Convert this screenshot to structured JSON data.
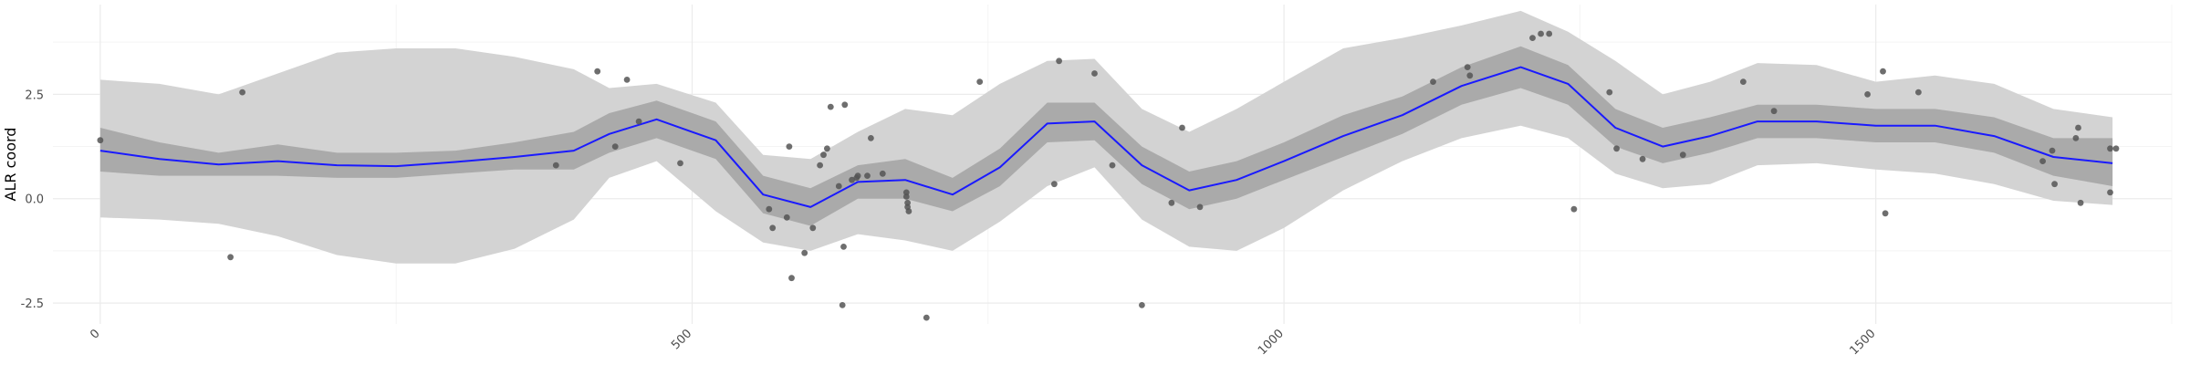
{
  "chart_data": {
    "type": "line",
    "title": "",
    "xlabel": "",
    "ylabel": "ALR coord",
    "xlim": [
      -40,
      1750
    ],
    "ylim": [
      -3.0,
      4.65
    ],
    "x_ticks": [
      {
        "value": 0,
        "label": "0"
      },
      {
        "value": 500,
        "label": "500"
      },
      {
        "value": 1000,
        "label": "1000"
      },
      {
        "value": 1500,
        "label": "1500"
      }
    ],
    "y_ticks": [
      {
        "value": -2.5,
        "label": "-2.5"
      },
      {
        "value": 0,
        "label": "0.0"
      },
      {
        "value": 2.5,
        "label": "2.5"
      }
    ],
    "grid": true,
    "colors": {
      "line": "#1a1aff",
      "band_inner": "#aaaaaa",
      "band_outer": "#d3d3d3",
      "points": "#555555",
      "grid_major": "#ebebeb",
      "grid_minor": "#f4f4f4"
    },
    "series": [
      {
        "type": "line",
        "x": [
          0,
          50,
          100,
          150,
          200,
          250,
          300,
          350,
          400,
          430,
          470,
          520,
          560,
          600,
          640,
          680,
          720,
          760,
          800,
          840,
          880,
          920,
          960,
          1000,
          1050,
          1100,
          1150,
          1200,
          1240,
          1280,
          1320,
          1360,
          1400,
          1450,
          1500,
          1550,
          1600,
          1650,
          1700
        ],
        "y": [
          1.15,
          0.95,
          0.82,
          0.9,
          0.8,
          0.78,
          0.88,
          1.0,
          1.15,
          1.55,
          1.9,
          1.4,
          0.1,
          -0.2,
          0.4,
          0.45,
          0.1,
          0.75,
          1.8,
          1.85,
          0.8,
          0.2,
          0.45,
          0.9,
          1.5,
          2.0,
          2.7,
          3.15,
          2.75,
          1.7,
          1.25,
          1.5,
          1.85,
          1.85,
          1.75,
          1.75,
          1.5,
          1.0,
          0.85
        ]
      },
      {
        "type": "band",
        "x": [
          0,
          50,
          100,
          150,
          200,
          250,
          300,
          350,
          400,
          430,
          470,
          520,
          560,
          600,
          640,
          680,
          720,
          760,
          800,
          840,
          880,
          920,
          960,
          1000,
          1050,
          1100,
          1150,
          1200,
          1240,
          1280,
          1320,
          1360,
          1400,
          1450,
          1500,
          1550,
          1600,
          1650,
          1700
        ],
        "lower": [
          0.65,
          0.55,
          0.55,
          0.55,
          0.5,
          0.5,
          0.6,
          0.7,
          0.7,
          1.1,
          1.45,
          0.95,
          -0.35,
          -0.65,
          0.0,
          0.0,
          -0.3,
          0.3,
          1.35,
          1.4,
          0.35,
          -0.25,
          0.0,
          0.45,
          1.0,
          1.55,
          2.25,
          2.65,
          2.25,
          1.25,
          0.85,
          1.1,
          1.45,
          1.45,
          1.35,
          1.35,
          1.1,
          0.55,
          0.3
        ],
        "upper": [
          1.7,
          1.35,
          1.1,
          1.3,
          1.1,
          1.1,
          1.15,
          1.35,
          1.6,
          2.05,
          2.35,
          1.85,
          0.55,
          0.25,
          0.8,
          0.95,
          0.5,
          1.2,
          2.3,
          2.3,
          1.25,
          0.65,
          0.9,
          1.35,
          2.0,
          2.45,
          3.15,
          3.65,
          3.2,
          2.15,
          1.7,
          1.95,
          2.25,
          2.25,
          2.15,
          2.15,
          1.95,
          1.45,
          1.45
        ]
      },
      {
        "type": "band",
        "x": [
          0,
          50,
          100,
          150,
          200,
          250,
          300,
          350,
          400,
          430,
          470,
          520,
          560,
          600,
          640,
          680,
          720,
          760,
          800,
          840,
          880,
          920,
          960,
          1000,
          1050,
          1100,
          1150,
          1200,
          1240,
          1280,
          1320,
          1360,
          1400,
          1450,
          1500,
          1550,
          1600,
          1650,
          1700
        ],
        "lower": [
          -0.45,
          -0.5,
          -0.6,
          -0.9,
          -1.35,
          -1.55,
          -1.55,
          -1.2,
          -0.5,
          0.5,
          0.9,
          -0.3,
          -1.05,
          -1.25,
          -0.85,
          -1.0,
          -1.25,
          -0.55,
          0.3,
          0.75,
          -0.5,
          -1.15,
          -1.25,
          -0.7,
          0.2,
          0.9,
          1.45,
          1.75,
          1.45,
          0.6,
          0.25,
          0.35,
          0.8,
          0.85,
          0.7,
          0.6,
          0.35,
          -0.05,
          -0.15
        ],
        "upper": [
          2.85,
          2.75,
          2.5,
          3.0,
          3.5,
          3.6,
          3.6,
          3.4,
          3.1,
          2.65,
          2.75,
          2.3,
          1.05,
          0.95,
          1.6,
          2.15,
          2.0,
          2.75,
          3.3,
          3.35,
          2.15,
          1.6,
          2.15,
          2.8,
          3.6,
          3.85,
          4.15,
          4.5,
          4.0,
          3.3,
          2.5,
          2.8,
          3.25,
          3.2,
          2.8,
          2.95,
          2.75,
          2.15,
          1.95
        ]
      },
      {
        "type": "scatter",
        "points": [
          [
            0,
            1.4
          ],
          [
            110,
            -1.4
          ],
          [
            120,
            2.55
          ],
          [
            385,
            0.8
          ],
          [
            420,
            3.05
          ],
          [
            435,
            1.25
          ],
          [
            445,
            2.85
          ],
          [
            455,
            1.85
          ],
          [
            490,
            0.85
          ],
          [
            565,
            -0.25
          ],
          [
            568,
            -0.7
          ],
          [
            580,
            -0.45
          ],
          [
            582,
            1.25
          ],
          [
            584,
            -1.9
          ],
          [
            595,
            -1.3
          ],
          [
            602,
            -0.7
          ],
          [
            608,
            0.8
          ],
          [
            611,
            1.05
          ],
          [
            614,
            1.2
          ],
          [
            617,
            2.2
          ],
          [
            624,
            0.3
          ],
          [
            627,
            -2.55
          ],
          [
            628,
            -1.15
          ],
          [
            629,
            2.25
          ],
          [
            635,
            0.45
          ],
          [
            639,
            0.5
          ],
          [
            640,
            0.55
          ],
          [
            648,
            0.55
          ],
          [
            651,
            1.45
          ],
          [
            661,
            0.6
          ],
          [
            681,
            0.15
          ],
          [
            681,
            0.05
          ],
          [
            682,
            -0.1
          ],
          [
            682,
            -0.2
          ],
          [
            683,
            -0.3
          ],
          [
            698,
            -2.85
          ],
          [
            743,
            2.8
          ],
          [
            806,
            0.35
          ],
          [
            810,
            3.3
          ],
          [
            840,
            3.0
          ],
          [
            855,
            0.8
          ],
          [
            880,
            -2.55
          ],
          [
            905,
            -0.1
          ],
          [
            914,
            1.7
          ],
          [
            929,
            -0.2
          ],
          [
            1126,
            2.8
          ],
          [
            1155,
            3.15
          ],
          [
            1157,
            2.95
          ],
          [
            1210,
            3.85
          ],
          [
            1217,
            3.95
          ],
          [
            1224,
            3.95
          ],
          [
            1245,
            -0.25
          ],
          [
            1275,
            2.55
          ],
          [
            1281,
            1.2
          ],
          [
            1303,
            0.95
          ],
          [
            1337,
            1.05
          ],
          [
            1388,
            2.8
          ],
          [
            1414,
            2.1
          ],
          [
            1493,
            2.5
          ],
          [
            1506,
            3.05
          ],
          [
            1508,
            -0.35
          ],
          [
            1536,
            2.55
          ],
          [
            1641,
            0.9
          ],
          [
            1649,
            1.15
          ],
          [
            1651,
            0.35
          ],
          [
            1669,
            1.45
          ],
          [
            1671,
            1.7
          ],
          [
            1673,
            -0.1
          ],
          [
            1698,
            1.2
          ],
          [
            1703,
            1.2
          ],
          [
            1698,
            0.15
          ]
        ]
      }
    ]
  }
}
